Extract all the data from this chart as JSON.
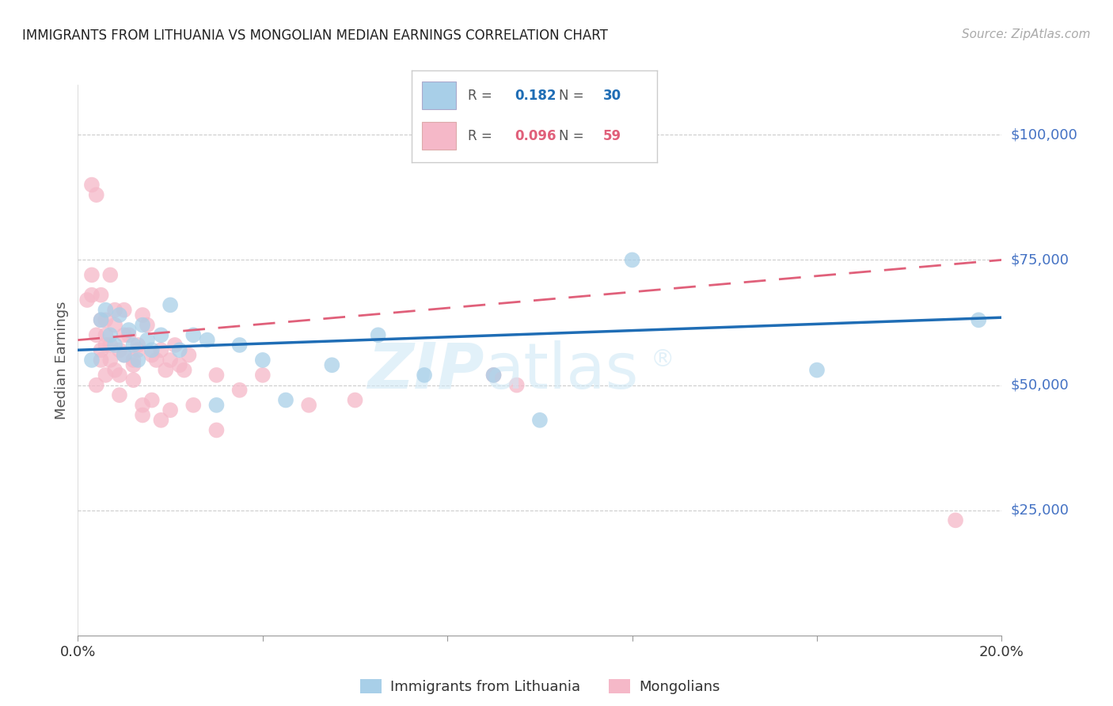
{
  "title": "IMMIGRANTS FROM LITHUANIA VS MONGOLIAN MEDIAN EARNINGS CORRELATION CHART",
  "source": "Source: ZipAtlas.com",
  "ylabel": "Median Earnings",
  "R1": 0.182,
  "N1": 30,
  "R2": 0.096,
  "N2": 59,
  "color_blue": "#a8cfe8",
  "color_blue_line": "#1f6db5",
  "color_pink": "#f5b8c8",
  "color_pink_line": "#e0607a",
  "color_ytick": "#4472c4",
  "background": "#ffffff",
  "lithuania_x": [
    0.003,
    0.005,
    0.006,
    0.007,
    0.008,
    0.009,
    0.01,
    0.011,
    0.012,
    0.013,
    0.014,
    0.015,
    0.016,
    0.018,
    0.02,
    0.022,
    0.025,
    0.028,
    0.03,
    0.035,
    0.04,
    0.045,
    0.055,
    0.065,
    0.075,
    0.09,
    0.1,
    0.12,
    0.16,
    0.195
  ],
  "lithuania_y": [
    55000,
    63000,
    65000,
    60000,
    58000,
    64000,
    56000,
    61000,
    58000,
    55000,
    62000,
    59000,
    57000,
    60000,
    66000,
    57000,
    60000,
    59000,
    46000,
    58000,
    55000,
    47000,
    54000,
    60000,
    52000,
    52000,
    43000,
    75000,
    53000,
    63000
  ],
  "mongolia_x": [
    0.002,
    0.003,
    0.004,
    0.005,
    0.006,
    0.007,
    0.008,
    0.009,
    0.01,
    0.011,
    0.012,
    0.013,
    0.014,
    0.015,
    0.016,
    0.017,
    0.018,
    0.019,
    0.02,
    0.021,
    0.022,
    0.023,
    0.024,
    0.005,
    0.006,
    0.007,
    0.008,
    0.009,
    0.01,
    0.012,
    0.013,
    0.014,
    0.003,
    0.004,
    0.005,
    0.006,
    0.007,
    0.008,
    0.03,
    0.035,
    0.04,
    0.05,
    0.06,
    0.003,
    0.004,
    0.005,
    0.006,
    0.009,
    0.01,
    0.012,
    0.014,
    0.016,
    0.018,
    0.02,
    0.025,
    0.03,
    0.09,
    0.095,
    0.19
  ],
  "mongolia_y": [
    67000,
    90000,
    88000,
    68000,
    63000,
    72000,
    65000,
    57000,
    65000,
    60000,
    55000,
    58000,
    64000,
    62000,
    56000,
    55000,
    57000,
    53000,
    55000,
    58000,
    54000,
    53000,
    56000,
    55000,
    60000,
    58000,
    62000,
    52000,
    60000,
    54000,
    57000,
    46000,
    72000,
    60000,
    63000,
    58000,
    55000,
    53000,
    52000,
    49000,
    52000,
    46000,
    47000,
    68000,
    50000,
    57000,
    52000,
    48000,
    56000,
    51000,
    44000,
    47000,
    43000,
    45000,
    46000,
    41000,
    52000,
    50000,
    23000
  ],
  "xlim": [
    0,
    0.2
  ],
  "ylim": [
    0,
    110000
  ],
  "ytick_vals": [
    25000,
    50000,
    75000,
    100000
  ],
  "ytick_labels": [
    "$25,000",
    "$50,000",
    "$75,000",
    "$100,000"
  ],
  "xtick_positions": [
    0.0,
    0.04,
    0.08,
    0.12,
    0.16,
    0.2
  ],
  "xtick_labels": [
    "0.0%",
    "",
    "",
    "",
    "",
    "20.0%"
  ],
  "legend1_label": "Immigrants from Lithuania",
  "legend2_label": "Mongolians",
  "watermark_zip_color": "#d0e8f5",
  "watermark_atlas_color": "#d0e8f5",
  "grid_color": "#cccccc"
}
